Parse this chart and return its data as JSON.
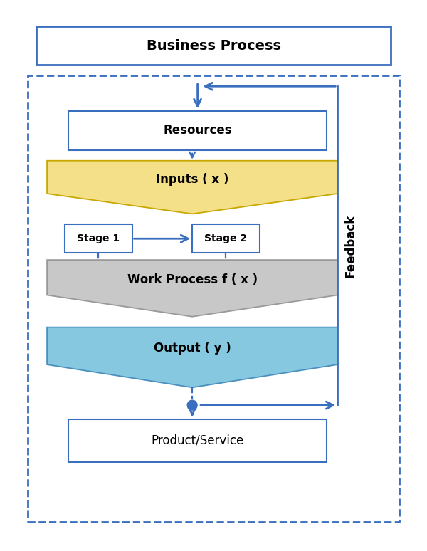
{
  "bg_color": "#ffffff",
  "blue": "#3A6EBF",
  "title_text": "Business Process",
  "resources_text": "Resources",
  "inputs_text": "Inputs ( x )",
  "stage1_text": "Stage 1",
  "stage2_text": "Stage 2",
  "workprocess_text": "Work Process f ( x )",
  "output_text": "Output ( y )",
  "product_text": "Product/Service",
  "feedback_text": "Feedback",
  "inputs_color": "#F5E08A",
  "inputs_edge": "#C8A800",
  "workprocess_color": "#C8C8C8",
  "workprocess_edge": "#999999",
  "output_color": "#85C8E0",
  "output_edge": "#4A90BF",
  "title_fontsize": 14,
  "label_fontsize": 12,
  "stage_fontsize": 10
}
